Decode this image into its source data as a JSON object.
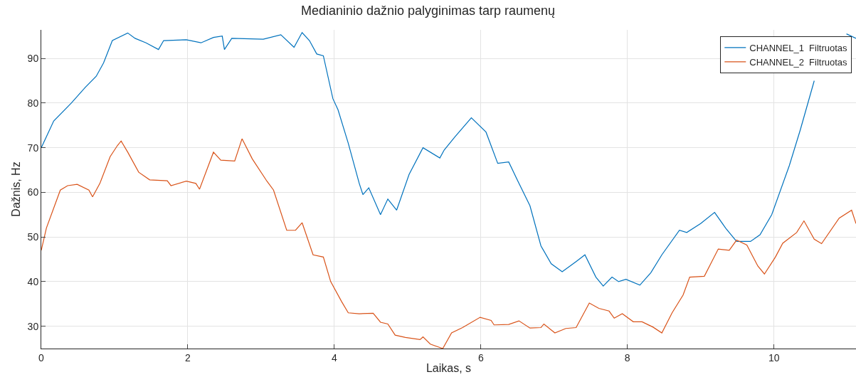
{
  "chart_data": {
    "type": "line",
    "title": "Medianinio dažnio palyginimas tarp raumenų",
    "xlabel": "Laikas, s",
    "ylabel": "Dažnis, Hz",
    "xlim": [
      0,
      11.12
    ],
    "ylim": [
      25,
      96.4
    ],
    "xticks": [
      0,
      2,
      4,
      6,
      8,
      10
    ],
    "yticks": [
      30,
      40,
      50,
      60,
      70,
      80,
      90
    ],
    "grid": true,
    "legend": "top right",
    "marker": "none",
    "line_style": "solid",
    "series": [
      {
        "name": "CHANNEL_1  Filtruotas",
        "color": "#0072bd",
        "x": [
          0,
          0.17,
          0.41,
          0.6,
          0.75,
          0.85,
          0.97,
          1.18,
          1.28,
          1.43,
          1.6,
          1.67,
          1.98,
          2.18,
          2.35,
          2.47,
          2.5,
          2.6,
          3.03,
          3.27,
          3.45,
          3.56,
          3.66,
          3.76,
          3.85,
          3.98,
          4.05,
          4.19,
          4.34,
          4.39,
          4.47,
          4.63,
          4.73,
          4.85,
          5.02,
          5.21,
          5.44,
          5.5,
          5.65,
          5.87,
          6.07,
          6.23,
          6.38,
          6.52,
          6.67,
          6.82,
          6.96,
          7.11,
          7.3,
          7.42,
          7.57,
          7.67,
          7.79,
          7.88,
          7.98,
          8.17,
          8.32,
          8.47,
          8.71,
          8.81,
          9.0,
          9.19,
          9.34,
          9.49,
          9.68,
          9.81,
          9.97,
          10.21,
          10.36,
          10.55,
          10.75,
          10.99,
          11.12
        ],
        "values": [
          70,
          76,
          80,
          83.5,
          86,
          89,
          94,
          95.7,
          94.5,
          93.5,
          92,
          94,
          94.2,
          93.5,
          94.7,
          95,
          92,
          94.5,
          94.3,
          95.3,
          92.5,
          95.8,
          94,
          91,
          90.6,
          81,
          78.5,
          71,
          62,
          59.5,
          61,
          55,
          58.5,
          56,
          64,
          70,
          67.7,
          69.5,
          72.5,
          76.7,
          73.5,
          66.5,
          66.8,
          62,
          57,
          48,
          44,
          42.2,
          44.5,
          46,
          41,
          39,
          41,
          40,
          40.5,
          39.2,
          42,
          46,
          51.5,
          51,
          53,
          55.5,
          52,
          49,
          49,
          50.5,
          55,
          66,
          74,
          85,
          null,
          95.5,
          94.5
        ]
      },
      {
        "name": "CHANNEL_2  Filtruotas",
        "color": "#d95319",
        "x": [
          0,
          0.07,
          0.26,
          0.36,
          0.49,
          0.65,
          0.7,
          0.8,
          0.94,
          1.04,
          1.09,
          1.18,
          1.33,
          1.48,
          1.72,
          1.77,
          1.98,
          2.11,
          2.16,
          2.35,
          2.45,
          2.64,
          2.74,
          2.88,
          3.08,
          3.17,
          3.35,
          3.47,
          3.56,
          3.71,
          3.85,
          3.95,
          4.1,
          4.19,
          4.34,
          4.53,
          4.63,
          4.73,
          4.83,
          4.97,
          5.17,
          5.21,
          5.31,
          5.48,
          5.6,
          5.75,
          5.99,
          6.14,
          6.18,
          6.38,
          6.52,
          6.67,
          6.82,
          6.86,
          7.01,
          7.16,
          7.3,
          7.48,
          7.61,
          7.75,
          7.82,
          7.93,
          8.08,
          8.2,
          8.35,
          8.47,
          8.61,
          8.76,
          8.85,
          9.05,
          9.24,
          9.39,
          9.49,
          9.63,
          9.78,
          9.87,
          10.02,
          10.12,
          10.31,
          10.41,
          10.55,
          10.65,
          10.89,
          11.06,
          11.12
        ],
        "values": [
          47,
          52,
          60.5,
          61.5,
          61.8,
          60.5,
          59,
          62,
          68,
          70.5,
          71.5,
          69,
          64.5,
          62.8,
          62.6,
          61.5,
          62.5,
          62,
          60.7,
          69,
          67.2,
          67,
          72,
          67.5,
          62.5,
          60.5,
          51.5,
          51.5,
          53.2,
          46,
          45.5,
          40,
          35.5,
          33,
          32.8,
          32.9,
          30.9,
          30.5,
          28,
          27.5,
          27,
          27.6,
          26,
          25,
          28.5,
          29.7,
          32,
          31.3,
          30.3,
          30.4,
          31.2,
          29.6,
          29.7,
          30.5,
          28.5,
          29.5,
          29.7,
          35.2,
          34,
          33.4,
          31.8,
          32.8,
          31,
          31,
          29.8,
          28.5,
          33,
          37,
          41,
          41.2,
          47.3,
          47,
          49.3,
          48.2,
          43.5,
          41.7,
          45.5,
          48.6,
          51,
          53.6,
          49.5,
          48.5,
          54.2,
          56,
          53
        ]
      }
    ]
  }
}
